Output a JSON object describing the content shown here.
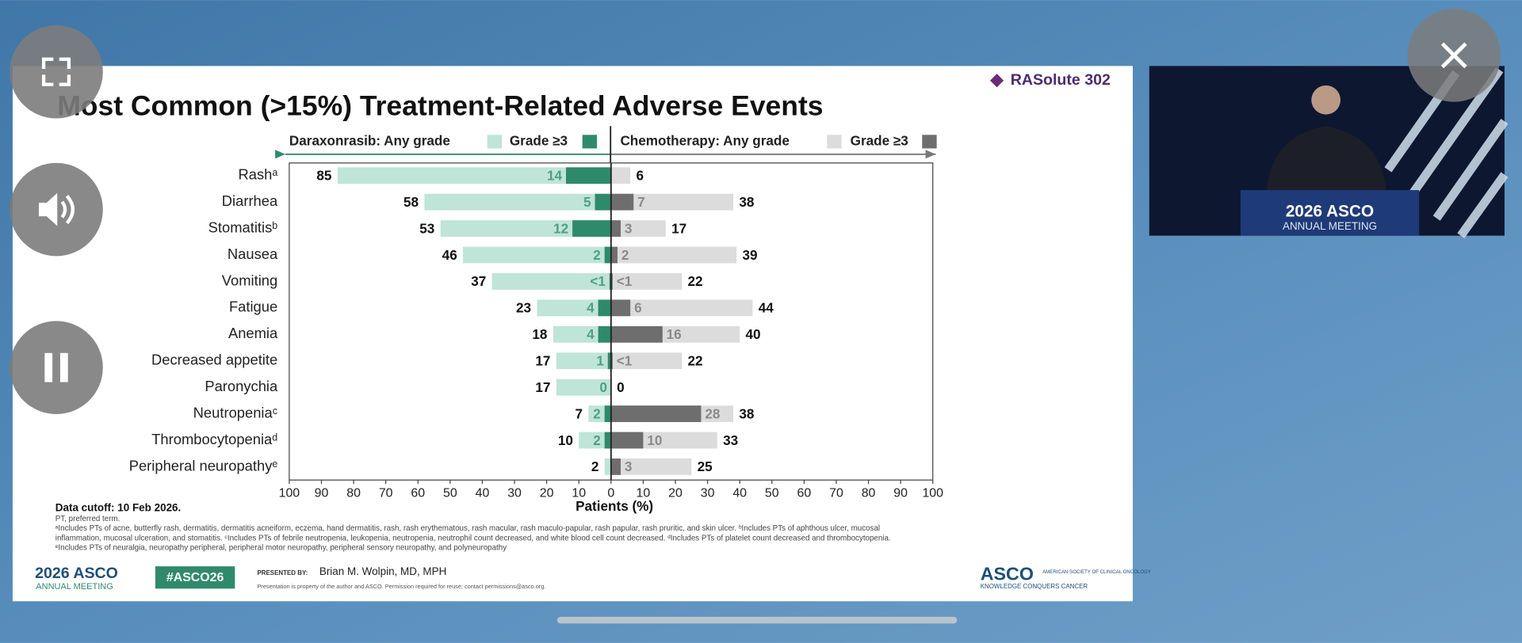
{
  "slide": {
    "brand": "RASolute 302",
    "data_cutoff": "Data cutoff: 10 Feb 2026.",
    "abbreviation": "PT, preferred term.",
    "footnotes": [
      "ᵃIncludes PTs of acne, butterfly rash, dermatitis, dermatitis acneiform, eczema, hand dermatitis, rash, rash erythematous, rash macular, rash maculo-papular, rash papular, rash pruritic, and skin ulcer. ᵇIncludes PTs of aphthous ulcer, mucosal",
      "inflammation, mucosal ulceration, and stomatitis. ᶜIncludes PTs of febrile neutropenia, leukopenia, neutropenia, neutrophil count decreased, and white blood cell count decreased. ᵈIncludes PTs of platelet count decreased and thrombocytopenia.",
      "ᵉIncludes PTs of neuralgia, neuropathy peripheral, peripheral motor neuropathy, peripheral sensory neuropathy, and polyneuropathy"
    ],
    "meeting_logo": "2026 ASCO",
    "meeting_subtitle": "ANNUAL MEETING",
    "hashtag": "#ASCO26",
    "presented_by": "PRESENTED BY:",
    "presenter": "Brian M. Wolpin, MD, MPH",
    "notice": "Presentation is property of the author and ASCO. Permission required for reuse; contact permissions@asco.org.",
    "society_logo": "ASCO",
    "society_name": "AMERICAN SOCIETY OF CLINICAL ONCOLOGY",
    "society_tagline": "KNOWLEDGE CONQUERS CANCER"
  },
  "video": {
    "meeting_logo": "2026 ASCO",
    "meeting_subtitle": "ANNUAL MEETING"
  },
  "chart_data": {
    "type": "diverging-bar",
    "title": "Most Common (>15%) Treatment-Related Adverse Events",
    "x_label": "Patients (%)",
    "categories": [
      "Rashᵃ",
      "Diarrhea",
      "Stomatitisᵇ",
      "Nausea",
      "Vomiting",
      "Fatigue",
      "Anemia",
      "Decreased appetite",
      "Paronychia",
      "Neutropeniaᶜ",
      "Thrombocytopeniaᵈ",
      "Peripheral neuropathyᵉ"
    ],
    "series": [
      {
        "name": "Daraxonrasib: Any grade",
        "color": "#bfe4d8",
        "side": "left",
        "values": [
          85,
          58,
          53,
          46,
          37,
          23,
          18,
          17,
          17,
          7,
          10,
          2
        ]
      },
      {
        "name": "Grade ≥3",
        "color": "#2f8a6c",
        "side": "left",
        "values": [
          14,
          5,
          12,
          2,
          0.5,
          4,
          4,
          1,
          0,
          2,
          2,
          null
        ],
        "value_labels": [
          null,
          null,
          null,
          null,
          "<1",
          null,
          null,
          null,
          null,
          null,
          null,
          null
        ]
      },
      {
        "name": "Chemotherapy: Any grade",
        "color": "#dcdcdc",
        "side": "right",
        "values": [
          6,
          38,
          17,
          39,
          22,
          44,
          40,
          22,
          0,
          38,
          33,
          25
        ]
      },
      {
        "name": "Grade ≥3",
        "color": "#6e6e6e",
        "side": "right",
        "values": [
          null,
          7,
          3,
          2,
          0.5,
          6,
          16,
          0.5,
          null,
          28,
          10,
          3
        ],
        "value_labels": [
          null,
          null,
          null,
          null,
          "<1",
          null,
          null,
          "<1",
          null,
          null,
          null,
          null
        ]
      }
    ],
    "xlim": [
      -100,
      100
    ],
    "xticks": [
      {
        "value": -100,
        "label": "100"
      },
      {
        "value": -90,
        "label": "90"
      },
      {
        "value": -80,
        "label": "80"
      },
      {
        "value": -70,
        "label": "70"
      },
      {
        "value": -60,
        "label": "60"
      },
      {
        "value": -50,
        "label": "50"
      },
      {
        "value": -40,
        "label": "40"
      },
      {
        "value": -30,
        "label": "30"
      },
      {
        "value": -20,
        "label": "20"
      },
      {
        "value": -10,
        "label": "10"
      },
      0,
      10,
      20,
      30,
      40,
      50,
      60,
      70,
      80,
      90,
      100
    ],
    "grid": false
  }
}
